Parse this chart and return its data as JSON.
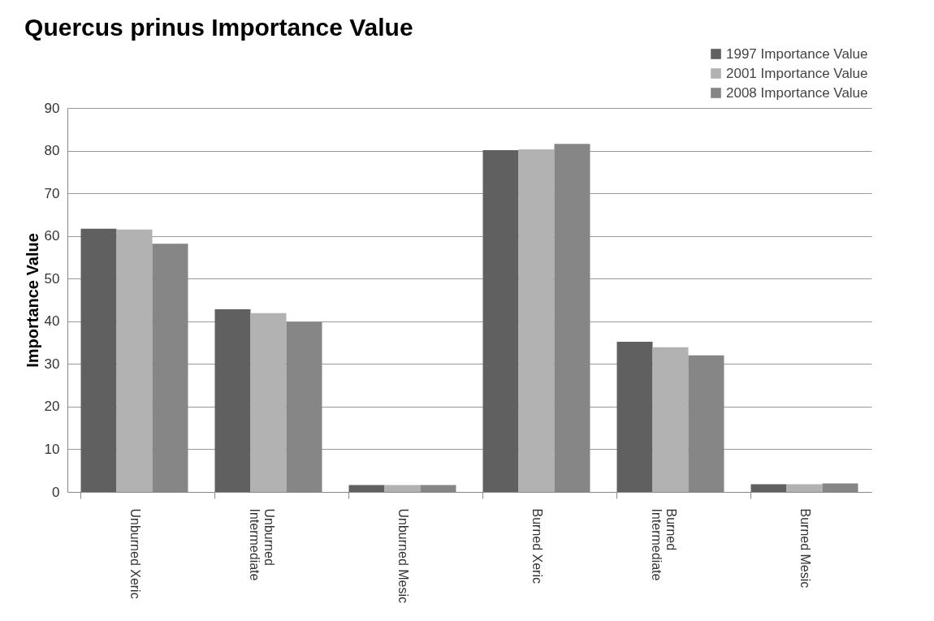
{
  "chart_data": {
    "type": "bar",
    "title": "Quercus prinus Importance Value",
    "ylabel": "Importance Value",
    "categories": [
      "Unburned Xeric",
      "Unburned Intermediate",
      "Unburned Mesic",
      "Burned Xeric",
      "Burned Intermediate",
      "Burned Mesic"
    ],
    "series": [
      {
        "name": "1997 Importance Value",
        "color": "#606060",
        "values": [
          61.7,
          42.8,
          1.6,
          80.1,
          35.2,
          1.8
        ]
      },
      {
        "name": "2001 Importance Value",
        "color": "#b2b2b2",
        "values": [
          61.5,
          41.9,
          1.6,
          80.3,
          33.9,
          1.8
        ]
      },
      {
        "name": "2008 Importance Value",
        "color": "#868686",
        "values": [
          58.2,
          39.8,
          1.6,
          81.6,
          32.0,
          2.0
        ]
      }
    ],
    "ylim": [
      0,
      90
    ],
    "yticks": [
      0,
      10,
      20,
      30,
      40,
      50,
      60,
      70,
      80,
      90
    ],
    "grid": "y",
    "legend": "top right"
  }
}
